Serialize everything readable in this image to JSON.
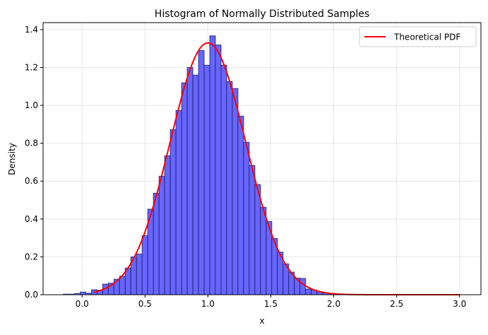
{
  "chart_data": {
    "type": "bar",
    "title": "Histogram of Normally Distributed Samples",
    "xlabel": "x",
    "ylabel": "Density",
    "xlim": [
      -0.31,
      3.17
    ],
    "ylim": [
      0,
      1.437
    ],
    "xticks": [
      "0.0",
      "0.5",
      "1.0",
      "1.5",
      "2.0",
      "2.5",
      "3.0"
    ],
    "yticks": [
      "0.0",
      "0.2",
      "0.4",
      "0.6",
      "0.8",
      "1.0",
      "1.2",
      "1.4"
    ],
    "grid": true,
    "legend_position": "top-right",
    "histogram": {
      "bin_start": -0.15,
      "bin_width": 0.0448,
      "values": [
        0.003,
        0.003,
        0.006,
        0.014,
        0.008,
        0.026,
        0.024,
        0.056,
        0.061,
        0.082,
        0.098,
        0.141,
        0.2,
        0.215,
        0.312,
        0.452,
        0.536,
        0.626,
        0.734,
        0.872,
        0.973,
        1.119,
        1.2,
        1.16,
        1.29,
        1.212,
        1.367,
        1.319,
        1.212,
        1.126,
        1.089,
        0.943,
        0.805,
        0.683,
        0.582,
        0.462,
        0.387,
        0.297,
        0.225,
        0.163,
        0.119,
        0.088,
        0.086,
        0.03,
        0.026,
        0.016,
        0.01,
        0.005
      ],
      "color": "#6666ff",
      "edge_color": "#1a1a66"
    },
    "series": [
      {
        "name": "Theoretical PDF",
        "type": "line",
        "distribution": "normal",
        "mean": 1.0,
        "std": 0.3,
        "x_range": [
          0.09,
          3.0
        ],
        "color": "#ff0000"
      }
    ]
  }
}
